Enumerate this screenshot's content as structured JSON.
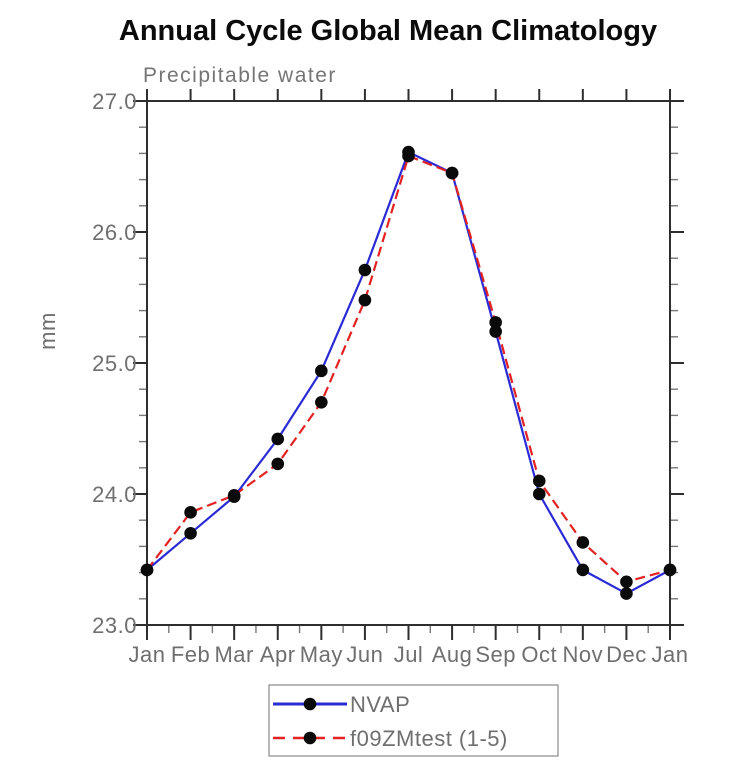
{
  "chart_data": {
    "type": "line",
    "title": "Annual Cycle Global Mean Climatology",
    "subtitle": "Precipitable water",
    "ylabel": "mm",
    "ylim": [
      23.0,
      27.0
    ],
    "ytick_labels": [
      "23.0",
      "24.0",
      "25.0",
      "26.0",
      "27.0"
    ],
    "y_minor_step": 0.2,
    "categories": [
      "Jan",
      "Feb",
      "Mar",
      "Apr",
      "May",
      "Jun",
      "Jul",
      "Aug",
      "Sep",
      "Oct",
      "Nov",
      "Dec",
      "Jan"
    ],
    "x_minor_ticks": "half-month",
    "grid": false,
    "legend_position": "bottom-center",
    "background_color": "#ffffff",
    "axis_color": "#2e2e2e",
    "tick_text_color": "#6f6f6f",
    "marker_color": "#0a0a0a",
    "marker_shape": "filled-circle",
    "series": [
      {
        "name": "NVAP",
        "color": "#2b2bd6",
        "line_style": "solid",
        "values": [
          23.42,
          23.7,
          23.98,
          24.42,
          24.94,
          25.71,
          26.61,
          26.45,
          25.24,
          24.0,
          23.42,
          23.24,
          23.42
        ]
      },
      {
        "name": "f09ZMtest (1-5)",
        "color": "#e32222",
        "line_style": "dashed",
        "values": [
          23.42,
          23.86,
          23.99,
          24.23,
          24.7,
          25.48,
          26.58,
          26.45,
          25.31,
          24.1,
          23.63,
          23.33,
          23.42
        ]
      }
    ]
  }
}
